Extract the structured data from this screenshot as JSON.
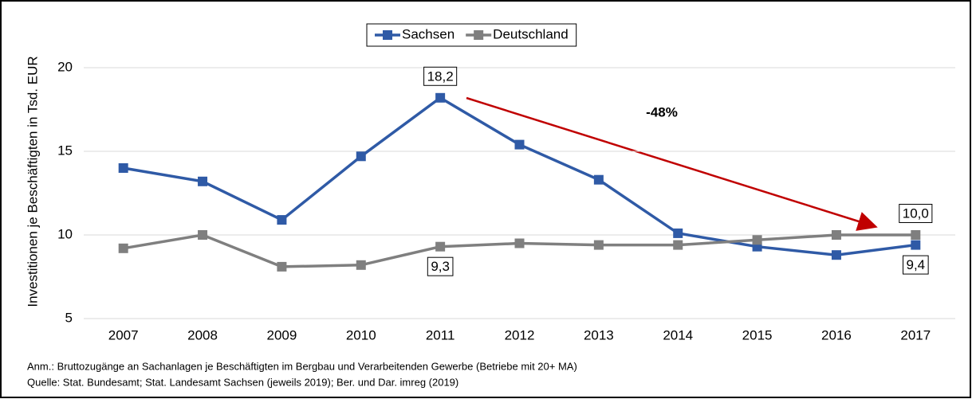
{
  "chart_data": {
    "type": "line",
    "y_axis_label": "Investitionen je Beschäftigten in Tsd. EUR",
    "categories": [
      "2007",
      "2008",
      "2009",
      "2010",
      "2011",
      "2012",
      "2013",
      "2014",
      "2015",
      "2016",
      "2017"
    ],
    "series": [
      {
        "name": "Sachsen",
        "color": "#2f5aa6",
        "values": [
          14.0,
          13.2,
          10.9,
          14.7,
          18.2,
          15.4,
          13.3,
          10.1,
          9.3,
          8.8,
          9.4
        ],
        "value_labels": [
          null,
          null,
          null,
          null,
          "18,2",
          null,
          null,
          null,
          null,
          null,
          "9,4"
        ]
      },
      {
        "name": "Deutschland",
        "color": "#7f7f7f",
        "values": [
          9.2,
          10.0,
          8.1,
          8.2,
          9.3,
          9.5,
          9.4,
          9.4,
          9.7,
          10.0,
          10.0
        ],
        "value_labels": [
          null,
          null,
          null,
          null,
          "9,3",
          null,
          null,
          null,
          null,
          null,
          "10,0"
        ]
      }
    ],
    "ylim": [
      5,
      20
    ],
    "yticks": [
      5,
      10,
      15,
      20
    ],
    "grid": true,
    "legend": "top",
    "annotation": "-48%",
    "annotation_color": "#c00000",
    "notes": [
      "Anm.: Bruttozugänge  an Sachanlagen je Beschäftigten im Bergbau und Verarbeitenden Gewerbe (Betriebe mit 20+ MA)",
      "Quelle: Stat. Bundesamt; Stat. Landesamt Sachsen (jeweils 2019); Ber. und Dar. imreg (2019)"
    ]
  }
}
